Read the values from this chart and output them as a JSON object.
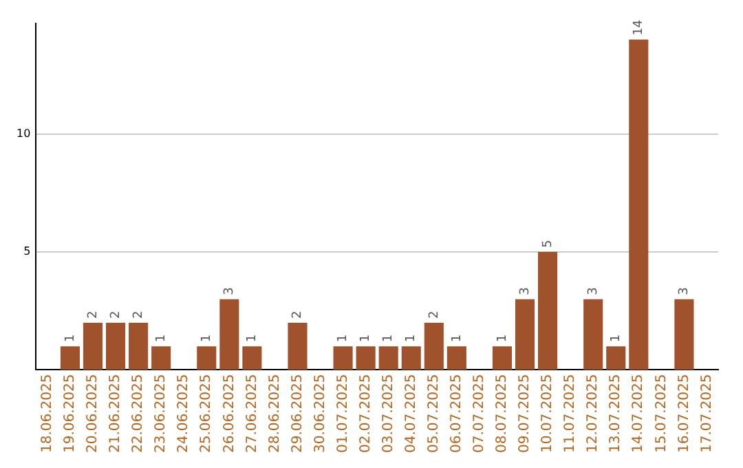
{
  "chart_data": {
    "type": "bar",
    "categories": [
      "18.06.2025",
      "19.06.2025",
      "20.06.2025",
      "21.06.2025",
      "22.06.2025",
      "23.06.2025",
      "24.06.2025",
      "25.06.2025",
      "26.06.2025",
      "27.06.2025",
      "28.06.2025",
      "29.06.2025",
      "30.06.2025",
      "01.07.2025",
      "02.07.2025",
      "03.07.2025",
      "04.07.2025",
      "05.07.2025",
      "06.07.2025",
      "07.07.2025",
      "08.07.2025",
      "09.07.2025",
      "10.07.2025",
      "11.07.2025",
      "12.07.2025",
      "13.07.2025",
      "14.07.2025",
      "15.07.2025",
      "16.07.2025",
      "17.07.2025"
    ],
    "values": [
      0,
      1,
      2,
      2,
      2,
      1,
      0,
      1,
      3,
      1,
      0,
      2,
      0,
      1,
      1,
      1,
      1,
      2,
      1,
      0,
      1,
      3,
      5,
      0,
      3,
      1,
      14,
      0,
      3,
      0
    ],
    "value_labels": [
      null,
      "1",
      "2",
      "2",
      "2",
      "1",
      null,
      "1",
      "3",
      "1",
      null,
      "2",
      null,
      "1",
      "1",
      "1",
      "1",
      "2",
      "1",
      null,
      "1",
      "3",
      "5",
      null,
      "3",
      "1",
      "14",
      null,
      "3",
      null
    ],
    "color": "#a0522d",
    "ylim": [
      0,
      14.7
    ],
    "yticks": [
      5,
      10
    ],
    "grid": "y"
  }
}
